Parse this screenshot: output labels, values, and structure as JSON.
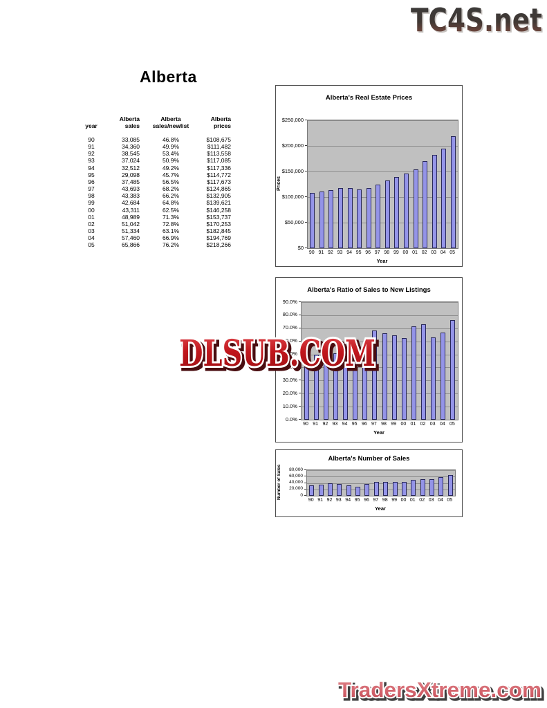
{
  "branding": {
    "site_logo": "TC4S.net",
    "footer_logo": "TradersXtreme.com",
    "watermark": "DLSUB.COM"
  },
  "page_title": "Alberta",
  "table": {
    "headers": [
      {
        "line1": "",
        "line2": "year"
      },
      {
        "line1": "Alberta",
        "line2": "sales"
      },
      {
        "line1": "Alberta",
        "line2": "sales/newlist"
      },
      {
        "line1": "Alberta",
        "line2": "prices"
      }
    ],
    "rows": [
      [
        "90",
        "33,085",
        "46.8%",
        "$108,675"
      ],
      [
        "91",
        "34,360",
        "49.9%",
        "$111,482"
      ],
      [
        "92",
        "38,545",
        "53.4%",
        "$113,558"
      ],
      [
        "93",
        "37,024",
        "50.9%",
        "$117,085"
      ],
      [
        "94",
        "32,512",
        "49.2%",
        "$117,336"
      ],
      [
        "95",
        "29,098",
        "45.7%",
        "$114,772"
      ],
      [
        "96",
        "37,485",
        "56.5%",
        "$117,673"
      ],
      [
        "97",
        "43,693",
        "68.2%",
        "$124,865"
      ],
      [
        "98",
        "43,383",
        "66.2%",
        "$132,905"
      ],
      [
        "99",
        "42,684",
        "64.8%",
        "$139,621"
      ],
      [
        "00",
        "43,311",
        "62.5%",
        "$146,258"
      ],
      [
        "01",
        "48,989",
        "71.3%",
        "$153,737"
      ],
      [
        "02",
        "51,042",
        "72.8%",
        "$170,253"
      ],
      [
        "03",
        "51,334",
        "63.1%",
        "$182,845"
      ],
      [
        "04",
        "57,460",
        "66.9%",
        "$194,769"
      ],
      [
        "05",
        "65,866",
        "76.2%",
        "$218,266"
      ]
    ]
  },
  "chart_data": [
    {
      "type": "bar",
      "title": "Alberta's Real Estate Prices",
      "xlabel": "Year",
      "ylabel": "Prices",
      "categories": [
        "90",
        "91",
        "92",
        "93",
        "94",
        "95",
        "96",
        "97",
        "98",
        "99",
        "00",
        "01",
        "02",
        "03",
        "04",
        "05"
      ],
      "values": [
        108675,
        111482,
        113558,
        117085,
        117336,
        114772,
        117673,
        124865,
        132905,
        139621,
        146258,
        153737,
        170253,
        182845,
        194769,
        218266
      ],
      "ylim": [
        0,
        250000
      ],
      "ytick_values": [
        0,
        50000,
        100000,
        150000,
        200000,
        250000
      ],
      "ytick_labels": [
        "$0",
        "$50,000",
        "$100,000",
        "$150,000",
        "$200,000",
        "$250,000"
      ],
      "grid": true,
      "legend": "none"
    },
    {
      "type": "bar",
      "title": "Alberta's Ratio of Sales to New Listings",
      "xlabel": "Year",
      "ylabel": "",
      "categories": [
        "90",
        "91",
        "92",
        "93",
        "94",
        "95",
        "96",
        "97",
        "98",
        "99",
        "00",
        "01",
        "02",
        "03",
        "04",
        "05"
      ],
      "values": [
        46.8,
        49.9,
        53.4,
        50.9,
        49.2,
        45.7,
        56.5,
        68.2,
        66.2,
        64.8,
        62.5,
        71.3,
        72.8,
        63.1,
        66.9,
        76.2
      ],
      "ylim": [
        0,
        90
      ],
      "ytick_values": [
        0,
        10,
        20,
        30,
        40,
        50,
        60,
        70,
        80,
        90
      ],
      "ytick_labels": [
        "0.0%",
        "10.0%",
        "20.0%",
        "30.0%",
        "40.0%",
        "50.0%",
        "60.0%",
        "70.0%",
        "80.0%",
        "90.0%"
      ],
      "grid": true,
      "legend": "none"
    },
    {
      "type": "bar",
      "title": "Alberta's Number of Sales",
      "xlabel": "Year",
      "ylabel": "Number of Sales",
      "categories": [
        "90",
        "91",
        "92",
        "93",
        "94",
        "95",
        "96",
        "97",
        "98",
        "99",
        "00",
        "01",
        "02",
        "03",
        "04",
        "05"
      ],
      "values": [
        33085,
        34360,
        38545,
        37024,
        32512,
        29098,
        37485,
        43693,
        43383,
        42684,
        43311,
        48989,
        51042,
        51334,
        57460,
        65866
      ],
      "ylim": [
        0,
        80000
      ],
      "ytick_values": [
        0,
        20000,
        40000,
        60000,
        80000
      ],
      "ytick_labels": [
        "0",
        "20,000",
        "40,000",
        "60,000",
        "80,000"
      ],
      "grid": true,
      "legend": "none"
    }
  ],
  "colors": {
    "bar_fill": "#9494e8",
    "bar_border": "#28285a",
    "plot_bg": "#c0c0c0",
    "gridline": "#8e8e8e",
    "watermark_red": "#b5181d",
    "footer_red": "#d2626b",
    "logo_dark": "#333333",
    "logo_brown": "#7a4a40"
  }
}
